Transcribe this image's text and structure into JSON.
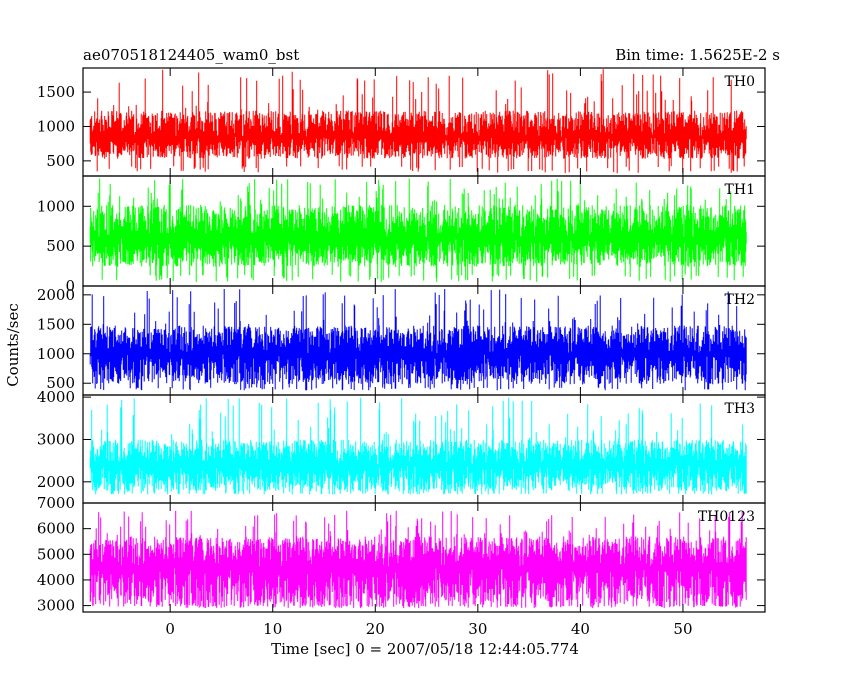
{
  "header": {
    "left": "ae070518124405_wam0_bst",
    "right": "Bin time: 1.5625E-2 s"
  },
  "chart_data": {
    "type": "line",
    "title": "ae070518124405_wam0_bst",
    "subtitle": "Bin time: 1.5625E-2 s",
    "xlabel": "Time [sec] 0 = 2007/05/18 12:44:05.774",
    "ylabel": "Counts/sec",
    "xlim": [
      -8.5,
      58
    ],
    "xticks": [
      0,
      10,
      20,
      30,
      40,
      50
    ],
    "data_x_range": [
      -7.8,
      56.2
    ],
    "grid": false,
    "series": [
      {
        "name": "TH0",
        "color": "#ff0000",
        "ylim": [
          280,
          1850
        ],
        "yticks": [
          500,
          1000,
          1500
        ],
        "mean": 850,
        "noise_low": 160,
        "noise_high": 380,
        "spike_max": 1850,
        "dip_min": 320
      },
      {
        "name": "TH1",
        "color": "#00ff00",
        "ylim": [
          0,
          1380
        ],
        "yticks": [
          0,
          500,
          1000
        ],
        "mean": 600,
        "noise_low": 180,
        "noise_high": 420,
        "spike_max": 1350,
        "dip_min": 50
      },
      {
        "name": "TH2",
        "color": "#0000ff",
        "ylim": [
          300,
          2150
        ],
        "yticks": [
          500,
          1000,
          1500,
          2000
        ],
        "mean": 1000,
        "noise_low": 260,
        "noise_high": 480,
        "spike_max": 2100,
        "dip_min": 380
      },
      {
        "name": "TH3",
        "color": "#00ffff",
        "ylim": [
          1500,
          4050
        ],
        "yticks": [
          2000,
          3000,
          4000
        ],
        "mean": 2400,
        "noise_low": 320,
        "noise_high": 600,
        "spike_max": 4000,
        "dip_min": 1700
      },
      {
        "name": "TH0123",
        "color": "#ff00ff",
        "ylim": [
          2750,
          7000
        ],
        "yticks": [
          3000,
          4000,
          5000,
          6000,
          7000
        ],
        "mean": 4500,
        "noise_low": 800,
        "noise_high": 1200,
        "spike_max": 6700,
        "dip_min": 3000
      }
    ]
  }
}
